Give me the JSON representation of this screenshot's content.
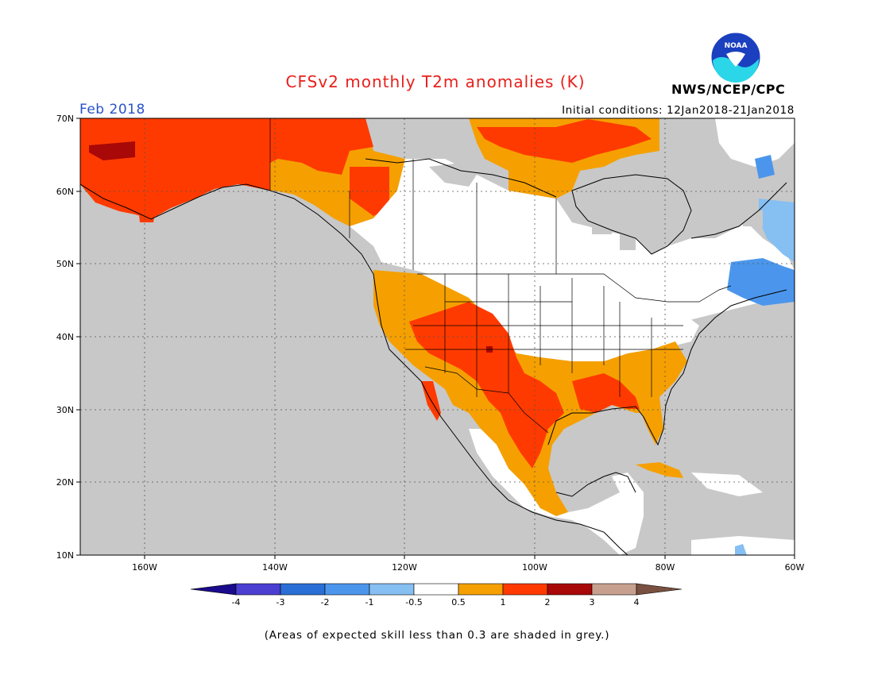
{
  "header": {
    "title": "CFSv2 monthly T2m anomalies (K)",
    "valid_month": "Feb 2018",
    "initial_conditions": "Initial conditions: 12Jan2018-21Jan2018",
    "agency": "NWS/NCEP/CPC",
    "logo_text": "NOAA"
  },
  "map": {
    "lat_range": [
      10,
      70
    ],
    "lon_range": [
      -170,
      -60
    ],
    "lat_labels": [
      "70N",
      "60N",
      "50N",
      "40N",
      "30N",
      "20N",
      "10N"
    ],
    "lon_labels": [
      "160W",
      "140W",
      "120W",
      "100W",
      "80W",
      "60W"
    ],
    "grid": true,
    "ocean_color": "#c8c8c8",
    "land_neutral_color": "#ffffff"
  },
  "legend": {
    "labels": [
      "-4",
      "-3",
      "-2",
      "-1",
      "-0.5",
      "0.5",
      "1",
      "2",
      "3",
      "4"
    ],
    "colors": [
      "#1a0a8c",
      "#4a3fd1",
      "#2a6fd6",
      "#4b96ec",
      "#86bff2",
      "#ffffff",
      "#f5a000",
      "#ff3a00",
      "#a80808",
      "#c8a090",
      "#7a5040"
    ]
  },
  "footnote": "(Areas of expected skill less than 0.3 are shaded in grey.)"
}
